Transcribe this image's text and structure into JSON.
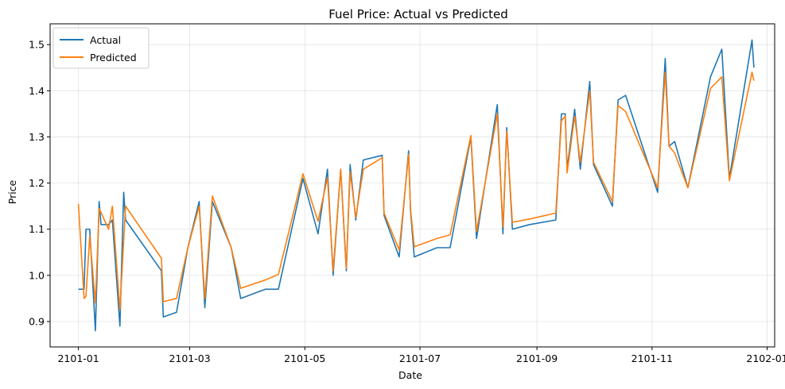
{
  "chart_data": {
    "type": "line",
    "title": "Fuel Price: Actual vs Predicted",
    "xlabel": "Date",
    "ylabel": "Price",
    "xlim": [
      "2100-12-17",
      "2102-01-05"
    ],
    "ylim": [
      0.845,
      1.545
    ],
    "xticks": [
      {
        "date": "2101-01-01",
        "label": "2101-01"
      },
      {
        "date": "2101-03-01",
        "label": "2101-03"
      },
      {
        "date": "2101-05-01",
        "label": "2101-05"
      },
      {
        "date": "2101-07-01",
        "label": "2101-07"
      },
      {
        "date": "2101-09-01",
        "label": "2101-09"
      },
      {
        "date": "2101-11-01",
        "label": "2101-11"
      },
      {
        "date": "2102-01-01",
        "label": "2102-01"
      }
    ],
    "yticks": [
      0.9,
      1.0,
      1.1,
      1.2,
      1.3,
      1.4,
      1.5
    ],
    "grid": true,
    "legend": "top-left",
    "series": [
      {
        "name": "Actual",
        "color": "#1f77b4",
        "points": [
          [
            "2101-01-01",
            0.97
          ],
          [
            "2101-01-04",
            0.97
          ],
          [
            "2101-01-05",
            1.1
          ],
          [
            "2101-01-07",
            1.1
          ],
          [
            "2101-01-10",
            0.88
          ],
          [
            "2101-01-12",
            1.16
          ],
          [
            "2101-01-13",
            1.11
          ],
          [
            "2101-01-17",
            1.11
          ],
          [
            "2101-01-19",
            1.12
          ],
          [
            "2101-01-23",
            0.89
          ],
          [
            "2101-01-25",
            1.18
          ],
          [
            "2101-01-26",
            1.12
          ],
          [
            "2101-02-14",
            1.01
          ],
          [
            "2101-02-15",
            0.91
          ],
          [
            "2101-02-22",
            0.92
          ],
          [
            "2101-02-28",
            1.06
          ],
          [
            "2101-03-06",
            1.16
          ],
          [
            "2101-03-09",
            0.93
          ],
          [
            "2101-03-13",
            1.16
          ],
          [
            "2101-03-23",
            1.06
          ],
          [
            "2101-03-28",
            0.95
          ],
          [
            "2101-04-10",
            0.97
          ],
          [
            "2101-04-17",
            0.97
          ],
          [
            "2101-04-30",
            1.21
          ],
          [
            "2101-05-08",
            1.09
          ],
          [
            "2101-05-13",
            1.23
          ],
          [
            "2101-05-16",
            1.0
          ],
          [
            "2101-05-20",
            1.23
          ],
          [
            "2101-05-23",
            1.01
          ],
          [
            "2101-05-25",
            1.24
          ],
          [
            "2101-05-28",
            1.12
          ],
          [
            "2101-06-01",
            1.25
          ],
          [
            "2101-06-11",
            1.26
          ],
          [
            "2101-06-12",
            1.13
          ],
          [
            "2101-06-20",
            1.04
          ],
          [
            "2101-06-25",
            1.27
          ],
          [
            "2101-06-26",
            1.14
          ],
          [
            "2101-06-28",
            1.04
          ],
          [
            "2101-07-10",
            1.06
          ],
          [
            "2101-07-17",
            1.06
          ],
          [
            "2101-07-28",
            1.3
          ],
          [
            "2101-07-31",
            1.08
          ],
          [
            "2101-08-11",
            1.37
          ],
          [
            "2101-08-14",
            1.09
          ],
          [
            "2101-08-16",
            1.32
          ],
          [
            "2101-08-19",
            1.1
          ],
          [
            "2101-08-28",
            1.11
          ],
          [
            "2101-09-11",
            1.12
          ],
          [
            "2101-09-14",
            1.35
          ],
          [
            "2101-09-16",
            1.35
          ],
          [
            "2101-09-17",
            1.23
          ],
          [
            "2101-09-21",
            1.36
          ],
          [
            "2101-09-24",
            1.23
          ],
          [
            "2101-09-29",
            1.42
          ],
          [
            "2101-10-01",
            1.24
          ],
          [
            "2101-10-11",
            1.15
          ],
          [
            "2101-10-14",
            1.38
          ],
          [
            "2101-10-18",
            1.39
          ],
          [
            "2101-11-04",
            1.18
          ],
          [
            "2101-11-08",
            1.47
          ],
          [
            "2101-11-10",
            1.28
          ],
          [
            "2101-11-13",
            1.29
          ],
          [
            "2101-11-20",
            1.19
          ],
          [
            "2101-12-02",
            1.43
          ],
          [
            "2101-12-08",
            1.49
          ],
          [
            "2101-12-12",
            1.21
          ],
          [
            "2101-12-24",
            1.51
          ],
          [
            "2101-12-25",
            1.45
          ]
        ]
      },
      {
        "name": "Predicted",
        "color": "#ff7f0e",
        "points": [
          [
            "2101-01-01",
            1.155
          ],
          [
            "2101-01-04",
            0.95
          ],
          [
            "2101-01-05",
            0.955
          ],
          [
            "2101-01-07",
            1.085
          ],
          [
            "2101-01-10",
            0.94
          ],
          [
            "2101-01-12",
            1.145
          ],
          [
            "2101-01-17",
            1.1
          ],
          [
            "2101-01-19",
            1.15
          ],
          [
            "2101-01-23",
            0.925
          ],
          [
            "2101-01-26",
            1.15
          ],
          [
            "2101-02-14",
            1.037
          ],
          [
            "2101-02-15",
            0.943
          ],
          [
            "2101-02-22",
            0.95
          ],
          [
            "2101-02-28",
            1.06
          ],
          [
            "2101-03-06",
            1.15
          ],
          [
            "2101-03-09",
            0.95
          ],
          [
            "2101-03-13",
            1.172
          ],
          [
            "2101-03-23",
            1.06
          ],
          [
            "2101-03-28",
            0.972
          ],
          [
            "2101-04-10",
            0.99
          ],
          [
            "2101-04-17",
            1.002
          ],
          [
            "2101-04-30",
            1.22
          ],
          [
            "2101-05-08",
            1.117
          ],
          [
            "2101-05-13",
            1.212
          ],
          [
            "2101-05-16",
            1.01
          ],
          [
            "2101-05-20",
            1.23
          ],
          [
            "2101-05-23",
            1.015
          ],
          [
            "2101-05-25",
            1.225
          ],
          [
            "2101-05-28",
            1.125
          ],
          [
            "2101-06-01",
            1.23
          ],
          [
            "2101-06-11",
            1.255
          ],
          [
            "2101-06-12",
            1.135
          ],
          [
            "2101-06-20",
            1.055
          ],
          [
            "2101-06-25",
            1.262
          ],
          [
            "2101-06-26",
            1.145
          ],
          [
            "2101-06-28",
            1.062
          ],
          [
            "2101-07-10",
            1.08
          ],
          [
            "2101-07-17",
            1.088
          ],
          [
            "2101-07-28",
            1.303
          ],
          [
            "2101-07-31",
            1.095
          ],
          [
            "2101-08-11",
            1.35
          ],
          [
            "2101-08-14",
            1.105
          ],
          [
            "2101-08-16",
            1.312
          ],
          [
            "2101-08-19",
            1.115
          ],
          [
            "2101-08-28",
            1.122
          ],
          [
            "2101-09-11",
            1.135
          ],
          [
            "2101-09-14",
            1.335
          ],
          [
            "2101-09-16",
            1.345
          ],
          [
            "2101-09-17",
            1.222
          ],
          [
            "2101-09-21",
            1.345
          ],
          [
            "2101-09-24",
            1.245
          ],
          [
            "2101-09-29",
            1.4
          ],
          [
            "2101-10-01",
            1.245
          ],
          [
            "2101-10-11",
            1.16
          ],
          [
            "2101-10-14",
            1.368
          ],
          [
            "2101-10-18",
            1.355
          ],
          [
            "2101-11-04",
            1.19
          ],
          [
            "2101-11-08",
            1.44
          ],
          [
            "2101-11-10",
            1.28
          ],
          [
            "2101-11-13",
            1.265
          ],
          [
            "2101-11-20",
            1.19
          ],
          [
            "2101-12-02",
            1.405
          ],
          [
            "2101-12-08",
            1.43
          ],
          [
            "2101-12-12",
            1.205
          ],
          [
            "2101-12-24",
            1.44
          ],
          [
            "2101-12-25",
            1.422
          ]
        ]
      }
    ]
  }
}
